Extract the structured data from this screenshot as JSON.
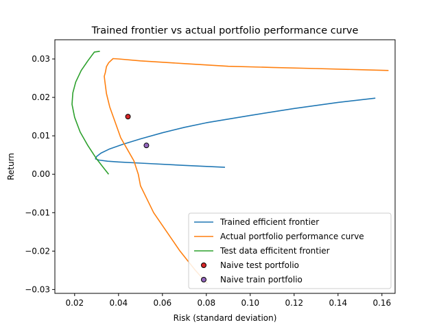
{
  "chart_data": {
    "type": "line",
    "title": "Trained frontier vs actual portfolio performance curve",
    "xlabel": "Risk (standard deviation)",
    "ylabel": "Return",
    "xlim": [
      0.011,
      0.166
    ],
    "ylim": [
      -0.031,
      0.035
    ],
    "xticks": [
      0.02,
      0.04,
      0.06,
      0.08,
      0.1,
      0.12,
      0.14,
      0.16
    ],
    "xtick_labels": [
      "0.02",
      "0.04",
      "0.06",
      "0.08",
      "0.10",
      "0.12",
      "0.14",
      "0.16"
    ],
    "yticks": [
      -0.03,
      -0.02,
      -0.01,
      0.0,
      0.01,
      0.02,
      0.03
    ],
    "ytick_labels": [
      "−0.03",
      "−0.02",
      "−0.01",
      "0.00",
      "0.01",
      "0.02",
      "0.03"
    ],
    "grid": false,
    "legend_position": "lower-right",
    "series": [
      {
        "name": "Trained efficient frontier",
        "kind": "line",
        "color": "#1f77b4",
        "points": [
          [
            0.0885,
            0.0018
          ],
          [
            0.07,
            0.0023
          ],
          [
            0.05,
            0.0029
          ],
          [
            0.04,
            0.0032
          ],
          [
            0.035,
            0.0034
          ],
          [
            0.031,
            0.0037
          ],
          [
            0.0295,
            0.004
          ],
          [
            0.03,
            0.0046
          ],
          [
            0.032,
            0.0055
          ],
          [
            0.036,
            0.0066
          ],
          [
            0.042,
            0.0078
          ],
          [
            0.05,
            0.0092
          ],
          [
            0.06,
            0.0108
          ],
          [
            0.07,
            0.0122
          ],
          [
            0.08,
            0.0134
          ],
          [
            0.1,
            0.0153
          ],
          [
            0.12,
            0.0171
          ],
          [
            0.14,
            0.0187
          ],
          [
            0.157,
            0.0198
          ]
        ]
      },
      {
        "name": "Actual portfolio performance curve",
        "kind": "line",
        "color": "#ff7f0e",
        "points": [
          [
            0.0805,
            -0.0285
          ],
          [
            0.075,
            -0.025
          ],
          [
            0.068,
            -0.02
          ],
          [
            0.062,
            -0.015
          ],
          [
            0.056,
            -0.01
          ],
          [
            0.053,
            -0.0065
          ],
          [
            0.05,
            -0.003
          ],
          [
            0.049,
            0.0
          ],
          [
            0.047,
            0.0035
          ],
          [
            0.044,
            0.0065
          ],
          [
            0.041,
            0.0095
          ],
          [
            0.0385,
            0.0135
          ],
          [
            0.036,
            0.0175
          ],
          [
            0.0345,
            0.021
          ],
          [
            0.0338,
            0.024
          ],
          [
            0.0335,
            0.0255
          ],
          [
            0.034,
            0.0265
          ],
          [
            0.0345,
            0.028
          ],
          [
            0.0355,
            0.029
          ],
          [
            0.0375,
            0.0301
          ],
          [
            0.04,
            0.03
          ],
          [
            0.05,
            0.0295
          ],
          [
            0.07,
            0.0288
          ],
          [
            0.09,
            0.0281
          ],
          [
            0.11,
            0.0278
          ],
          [
            0.13,
            0.0275
          ],
          [
            0.15,
            0.0272
          ],
          [
            0.163,
            0.027
          ]
        ]
      },
      {
        "name": "Test data efficitent frontier",
        "kind": "line",
        "color": "#2ca02c",
        "points": [
          [
            0.0355,
            0.0
          ],
          [
            0.033,
            0.0018
          ],
          [
            0.03,
            0.004
          ],
          [
            0.026,
            0.0075
          ],
          [
            0.0225,
            0.011
          ],
          [
            0.02,
            0.0148
          ],
          [
            0.0188,
            0.0182
          ],
          [
            0.0192,
            0.0212
          ],
          [
            0.0205,
            0.024
          ],
          [
            0.023,
            0.027
          ],
          [
            0.026,
            0.0295
          ],
          [
            0.029,
            0.0318
          ],
          [
            0.0315,
            0.032
          ]
        ]
      },
      {
        "name": "Naive test portfolio",
        "kind": "marker",
        "color": "#d62728",
        "points": [
          [
            0.0443,
            0.015
          ]
        ]
      },
      {
        "name": "Naive train portfolio",
        "kind": "marker",
        "color": "#9467bd",
        "points": [
          [
            0.0527,
            0.0075
          ]
        ]
      }
    ]
  }
}
